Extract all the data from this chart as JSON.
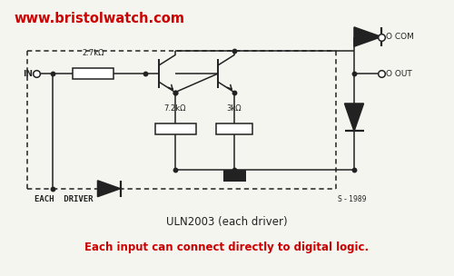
{
  "title": "ULN2003 (each driver)",
  "subtitle": "Each input can connect directly to digital logic.",
  "url_text": "www.bristolwatch.com",
  "url_color": "#cc0000",
  "subtitle_color": "#cc0000",
  "title_color": "#222222",
  "bg_color": "#f5f5f0",
  "line_color": "#222222",
  "fig_width": 5.0,
  "fig_height": 3.04,
  "dpi": 100
}
